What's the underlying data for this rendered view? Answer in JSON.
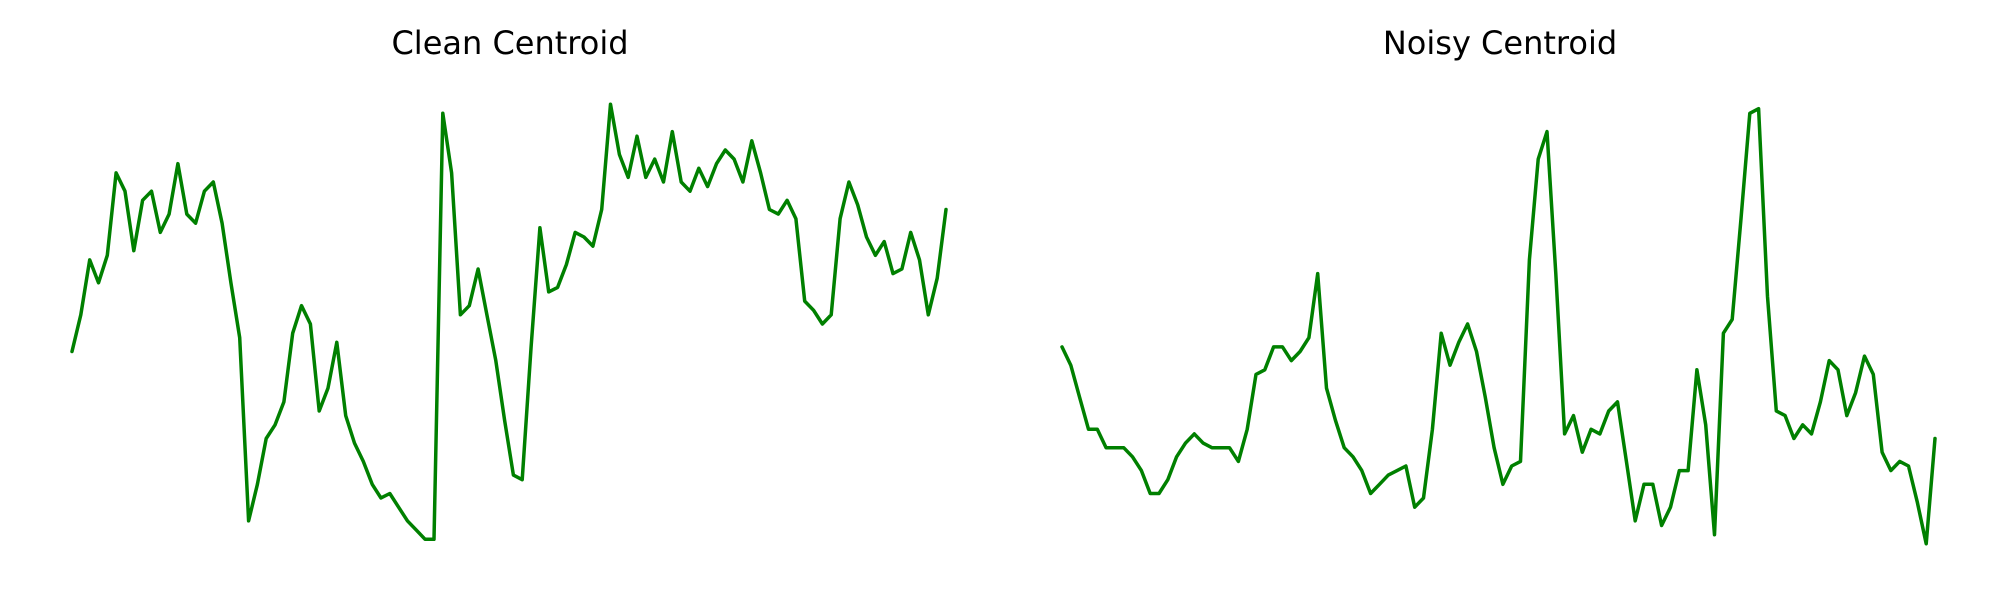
{
  "chart_data": [
    {
      "type": "line",
      "title": "Clean Centroid",
      "xlabel": "",
      "ylabel": "",
      "axes": "off",
      "grid": false,
      "color": "#008000",
      "xlim": [
        0,
        99
      ],
      "ylim": [
        0,
        1
      ],
      "values": [
        0.44,
        0.52,
        0.64,
        0.59,
        0.65,
        0.83,
        0.79,
        0.66,
        0.77,
        0.79,
        0.7,
        0.74,
        0.85,
        0.74,
        0.72,
        0.79,
        0.81,
        0.72,
        0.59,
        0.47,
        0.07,
        0.15,
        0.25,
        0.28,
        0.33,
        0.48,
        0.54,
        0.5,
        0.31,
        0.36,
        0.46,
        0.3,
        0.24,
        0.2,
        0.15,
        0.12,
        0.13,
        0.1,
        0.07,
        0.05,
        0.03,
        0.03,
        0.96,
        0.83,
        0.52,
        0.54,
        0.62,
        0.52,
        0.42,
        0.29,
        0.17,
        0.16,
        0.45,
        0.71,
        0.57,
        0.58,
        0.63,
        0.7,
        0.69,
        0.67,
        0.75,
        0.98,
        0.87,
        0.82,
        0.91,
        0.82,
        0.86,
        0.81,
        0.92,
        0.81,
        0.79,
        0.84,
        0.8,
        0.85,
        0.88,
        0.86,
        0.81,
        0.9,
        0.83,
        0.75,
        0.74,
        0.77,
        0.73,
        0.55,
        0.53,
        0.5,
        0.52,
        0.73,
        0.81,
        0.76,
        0.69,
        0.65,
        0.68,
        0.61,
        0.62,
        0.7,
        0.64,
        0.52,
        0.6,
        0.75
      ]
    },
    {
      "type": "line",
      "title": "Noisy Centroid",
      "xlabel": "",
      "ylabel": "",
      "axes": "off",
      "grid": false,
      "color": "#008000",
      "xlim": [
        0,
        99
      ],
      "ylim": [
        0,
        1
      ],
      "values": [
        0.45,
        0.41,
        0.34,
        0.27,
        0.27,
        0.23,
        0.23,
        0.23,
        0.21,
        0.18,
        0.13,
        0.13,
        0.16,
        0.21,
        0.24,
        0.26,
        0.24,
        0.23,
        0.23,
        0.23,
        0.2,
        0.27,
        0.39,
        0.4,
        0.45,
        0.45,
        0.42,
        0.44,
        0.47,
        0.61,
        0.36,
        0.29,
        0.23,
        0.21,
        0.18,
        0.13,
        0.15,
        0.17,
        0.18,
        0.19,
        0.1,
        0.12,
        0.27,
        0.48,
        0.41,
        0.46,
        0.5,
        0.44,
        0.34,
        0.23,
        0.15,
        0.19,
        0.2,
        0.64,
        0.86,
        0.92,
        0.61,
        0.26,
        0.3,
        0.22,
        0.27,
        0.26,
        0.31,
        0.33,
        0.2,
        0.07,
        0.15,
        0.15,
        0.06,
        0.1,
        0.18,
        0.18,
        0.4,
        0.28,
        0.04,
        0.48,
        0.51,
        0.73,
        0.96,
        0.97,
        0.56,
        0.31,
        0.3,
        0.25,
        0.28,
        0.26,
        0.33,
        0.42,
        0.4,
        0.3,
        0.35,
        0.43,
        0.39,
        0.22,
        0.18,
        0.2,
        0.19,
        0.11,
        0.02,
        0.25
      ]
    }
  ]
}
